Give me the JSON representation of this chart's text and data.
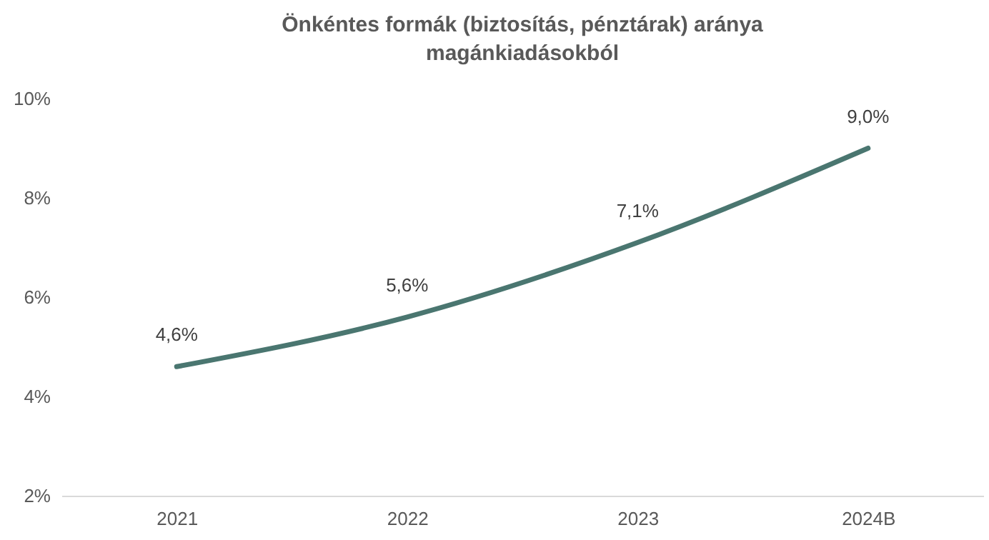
{
  "chart_data": {
    "type": "line",
    "title": "Önkéntes formák (biztosítás, pénztárak) aránya magánkiadásokból",
    "categories": [
      "2021",
      "2022",
      "2023",
      "2024B"
    ],
    "series": [
      {
        "color": "#4a7670",
        "values": [
          4.6,
          5.6,
          7.1,
          9.0
        ],
        "value_labels": [
          "4,6%",
          "5,6%",
          "7,1%",
          "9,0%"
        ]
      }
    ],
    "ylim": [
      2,
      10
    ],
    "yticks": [
      {
        "value": 2,
        "label": "2%"
      },
      {
        "value": 4,
        "label": "4%"
      },
      {
        "value": 6,
        "label": "6%"
      },
      {
        "value": 8,
        "label": "8%"
      },
      {
        "value": 10,
        "label": "10%"
      }
    ],
    "grid": false,
    "marker": "none",
    "line_style": "solid"
  }
}
